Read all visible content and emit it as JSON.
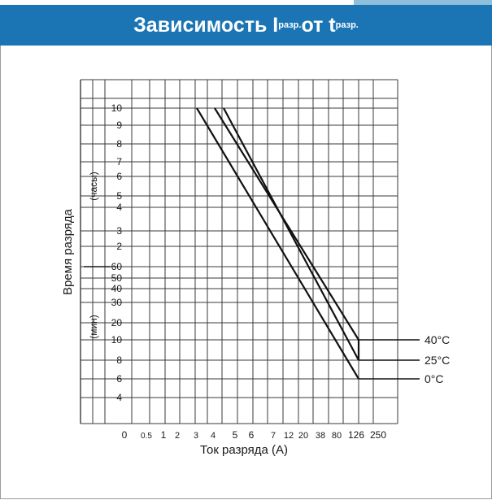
{
  "header": {
    "title_main": "Зависимость I",
    "title_sub1": "разр.",
    "title_mid": " от t",
    "title_sub2": "разр.",
    "bg_color": "#1b75b4",
    "accent_color": "#8ec0dc"
  },
  "chart_data": {
    "type": "line",
    "xlabel": "Ток разряда (А)",
    "ylabel": "Время разряда",
    "y_unit_upper": "(часы)",
    "y_unit_lower": "(мин)",
    "x_ticks": [
      "0",
      "0.5",
      "1",
      "2",
      "3",
      "4",
      "5",
      "6",
      "7",
      "12",
      "20",
      "38",
      "80",
      "126",
      "250"
    ],
    "y_ticks_hours": [
      "10",
      "9",
      "8",
      "7",
      "6",
      "5",
      "4",
      "3",
      "2"
    ],
    "y_ticks_minutes": [
      "60",
      "50",
      "40",
      "30",
      "20",
      "10",
      "8",
      "6",
      "4"
    ],
    "series": [
      {
        "name": "40°C",
        "points": [
          {
            "x": "4",
            "y": "10 ч"
          },
          {
            "x": "126",
            "y": "10 мин"
          },
          {
            "x": "126",
            "y": "8 мин"
          }
        ]
      },
      {
        "name": "25°C",
        "points": [
          {
            "x": "4",
            "y": "10 ч"
          },
          {
            "x": "126",
            "y": "8 мин"
          }
        ]
      },
      {
        "name": "0°C",
        "points": [
          {
            "x": "3",
            "y": "10 ч"
          },
          {
            "x": "126",
            "y": "6 мин"
          }
        ]
      }
    ],
    "grid": true
  }
}
